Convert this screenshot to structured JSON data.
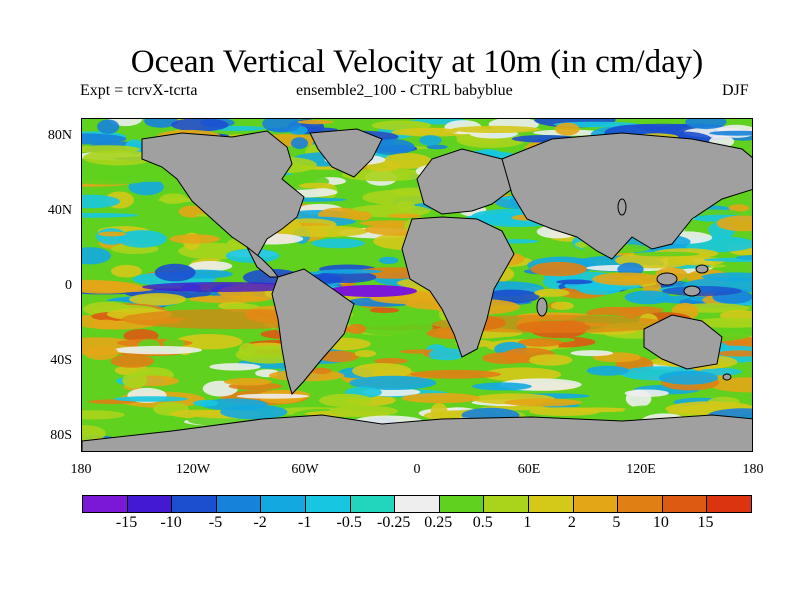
{
  "title": "Ocean Vertical Velocity at 10m (in cm/day)",
  "subtitle": {
    "left": "Expt = tcrvX-tcrta",
    "center": "ensemble2_100 - CTRL babyblue",
    "right": "DJF"
  },
  "axes": {
    "lat_labels": [
      "80N",
      "40N",
      "0",
      "40S",
      "80S"
    ],
    "lon_labels": [
      "180",
      "120W",
      "60W",
      "0",
      "60E",
      "120E",
      "180"
    ]
  },
  "colorbar": {
    "colors": [
      "#7b17d6",
      "#4319d2",
      "#1c4fd0",
      "#1782d9",
      "#14a8e0",
      "#17c6e0",
      "#22d6bd",
      "#eeeeee",
      "#5fd11e",
      "#a9d41b",
      "#d4c818",
      "#e3a616",
      "#e07f14",
      "#dd5a12",
      "#db3410"
    ],
    "labels": [
      "-15",
      "-10",
      "-5",
      "-2",
      "-1",
      "-0.5",
      "-0.25",
      "0.25",
      "0.5",
      "1",
      "2",
      "5",
      "10",
      "15"
    ]
  },
  "colors": {
    "land": "#a0a0a0",
    "coast": "#000000"
  }
}
